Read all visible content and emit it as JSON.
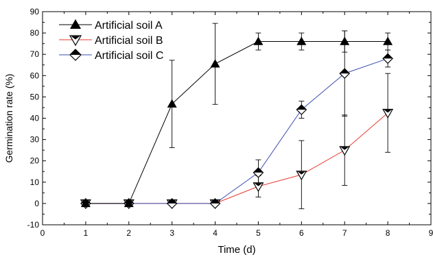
{
  "chart_data": {
    "type": "line",
    "title": "",
    "xlabel": "Time (d)",
    "ylabel": "Germination rate (%)",
    "xlim": [
      0,
      9
    ],
    "ylim": [
      -10,
      90
    ],
    "x_ticks": [
      0,
      1,
      2,
      3,
      4,
      5,
      6,
      7,
      8,
      9
    ],
    "y_ticks": [
      -10,
      0,
      10,
      20,
      30,
      40,
      50,
      60,
      70,
      80,
      90
    ],
    "grid": false,
    "legend_position": "top-left",
    "x": [
      1,
      2,
      3,
      4,
      5,
      6,
      7,
      8
    ],
    "series": [
      {
        "name": "Artificial soil A",
        "marker": "triangle-up",
        "color": "#000000",
        "values": [
          0,
          0,
          46.7,
          65.5,
          76,
          76,
          76,
          76
        ],
        "errors": [
          0,
          0,
          20.5,
          19,
          4,
          4,
          5,
          4
        ]
      },
      {
        "name": "Artificial soil B",
        "marker": "triangle-down",
        "color": "#e8342a",
        "values": [
          0,
          0,
          0,
          0,
          8,
          13.5,
          25,
          42.5
        ],
        "errors": [
          0,
          0,
          0,
          0,
          5,
          16,
          16.5,
          18.5
        ]
      },
      {
        "name": "Artificial soil C",
        "marker": "diamond",
        "color": "#3a4fb0",
        "values": [
          0,
          0,
          0,
          0,
          14.5,
          44,
          61,
          68
        ],
        "errors": [
          0,
          0,
          0,
          0,
          6,
          4,
          20,
          4
        ]
      }
    ]
  }
}
